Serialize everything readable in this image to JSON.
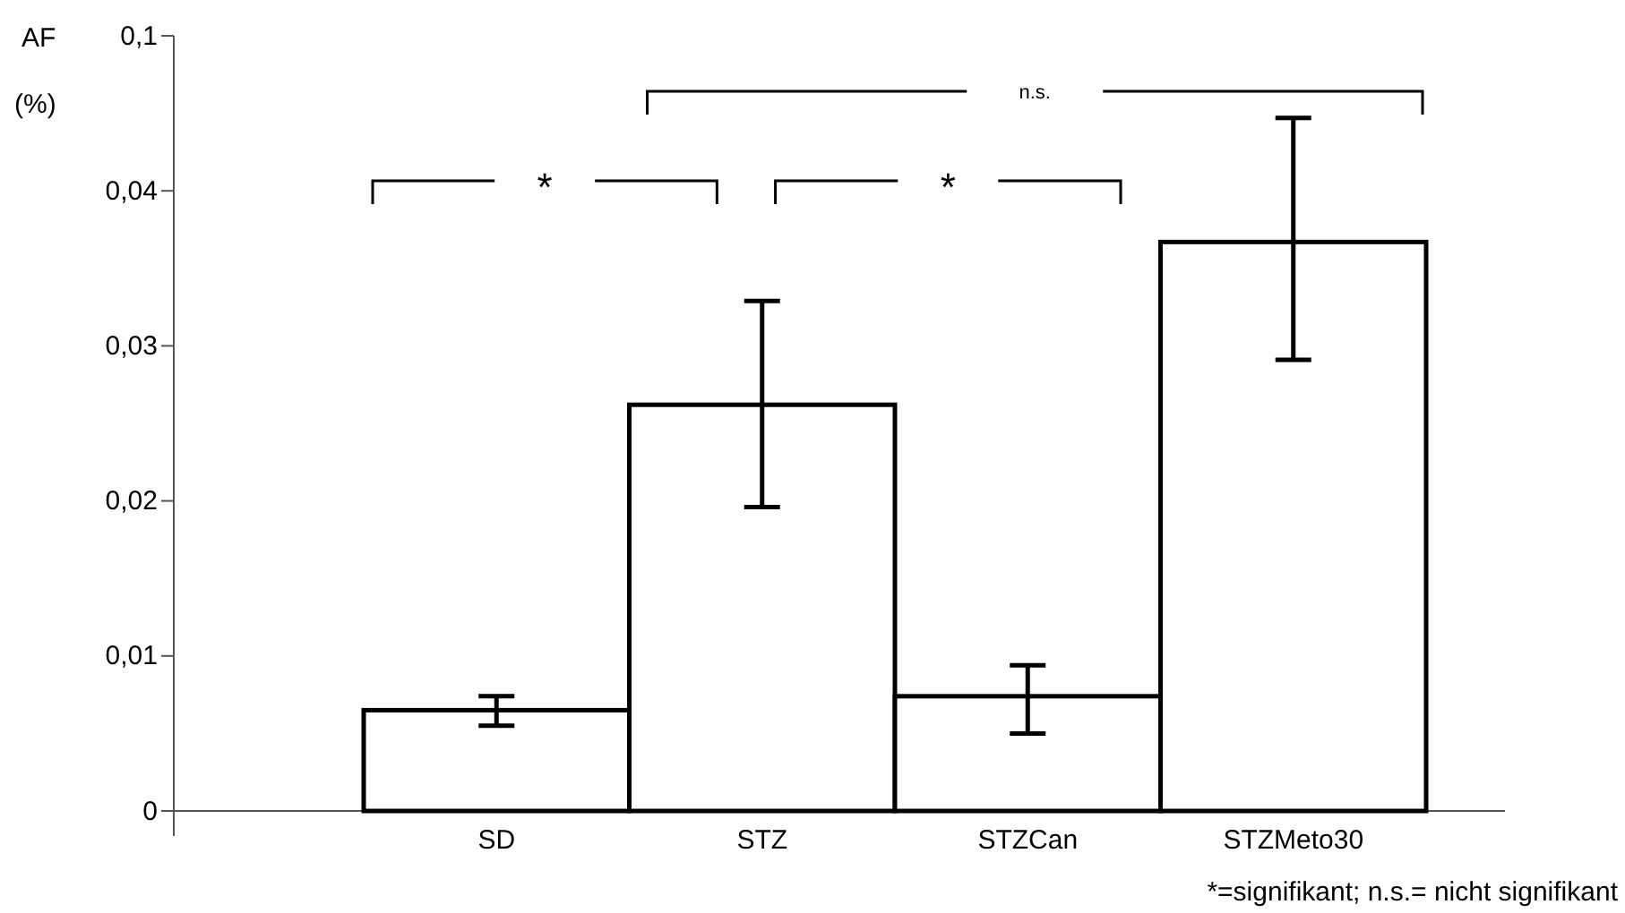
{
  "chart_data": {
    "type": "bar",
    "ylabel": "AF (%)",
    "categories": [
      "SD",
      "STZ",
      "STZCan",
      "STZMeto30"
    ],
    "values": [
      0.0065,
      0.0262,
      0.0074,
      0.0367
    ],
    "errors": [
      [
        0.0055,
        0.0074
      ],
      [
        0.0196,
        0.0329
      ],
      [
        0.005,
        0.0094
      ],
      [
        0.0291,
        0.0447
      ]
    ],
    "color": "#ffffff",
    "ylim": [
      0,
      0.05
    ],
    "yticks": [
      0,
      {
        "value": 0.01,
        "label": "0,01"
      },
      {
        "value": 0.02,
        "label": "0,02"
      },
      {
        "value": 0.03,
        "label": "0,03"
      },
      {
        "value": 0.04,
        "label": "0,04"
      },
      {
        "value": 0.05,
        "label": "0,1"
      }
    ],
    "grid": false,
    "annotations": [
      "*",
      "*",
      "n.s.",
      "*=signifikant;  n.s.= nicht signifikant"
    ]
  }
}
